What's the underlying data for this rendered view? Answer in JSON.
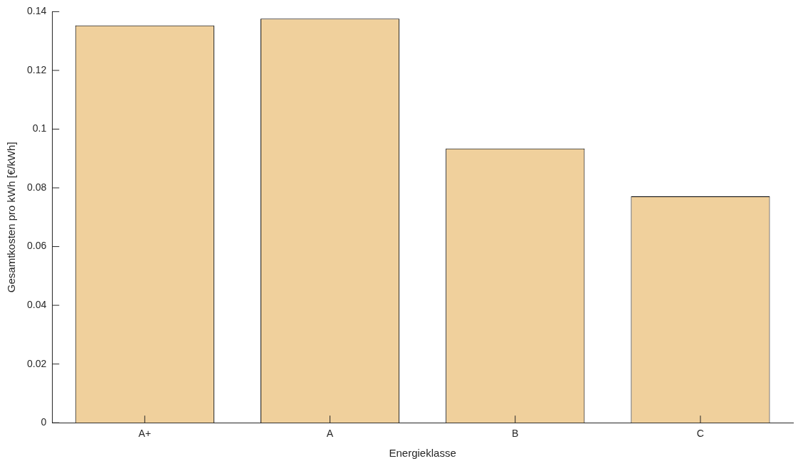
{
  "chart_data": {
    "type": "bar",
    "xlabel": "Energieklasse",
    "ylabel": "Gesamtkosten pro kWh [€/kWh]",
    "categories": [
      "A+",
      "A",
      "B",
      "C"
    ],
    "values": [
      0.1353,
      0.1376,
      0.0934,
      0.0771
    ],
    "color": "#f0d09c",
    "ylim": [
      0,
      0.14
    ],
    "yticks": [
      0,
      0.02,
      0.04,
      0.06,
      0.08,
      0.1,
      0.12,
      0.14
    ],
    "grid": false,
    "legend": false
  }
}
